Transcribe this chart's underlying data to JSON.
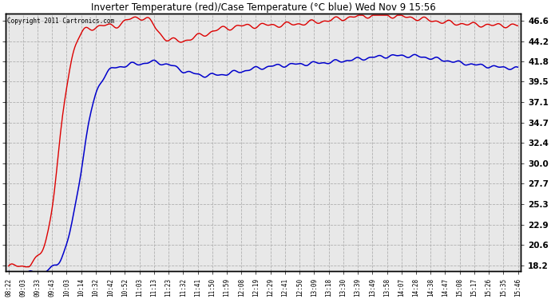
{
  "title": "Inverter Temperature (red)/Case Temperature (°C blue) Wed Nov 9 15:56",
  "copyright": "Copyright 2011 Cartronics.com",
  "background_color": "#ffffff",
  "plot_bg_color": "#e8e8e8",
  "grid_color": "#aaaaaa",
  "red_color": "#dd0000",
  "blue_color": "#0000cc",
  "yticks": [
    18.2,
    20.6,
    22.9,
    25.3,
    27.7,
    30.0,
    32.4,
    34.7,
    37.1,
    39.5,
    41.8,
    44.2,
    46.6
  ],
  "ylim": [
    17.5,
    47.4
  ],
  "xlabels": [
    "08:22",
    "09:03",
    "09:33",
    "09:43",
    "10:03",
    "10:14",
    "10:32",
    "10:42",
    "10:52",
    "11:03",
    "11:13",
    "11:23",
    "11:32",
    "11:41",
    "11:50",
    "11:59",
    "12:08",
    "12:19",
    "12:29",
    "12:41",
    "12:50",
    "13:09",
    "13:18",
    "13:30",
    "13:39",
    "13:49",
    "13:58",
    "14:07",
    "14:28",
    "14:38",
    "14:47",
    "15:08",
    "15:17",
    "15:26",
    "15:35",
    "15:46"
  ]
}
